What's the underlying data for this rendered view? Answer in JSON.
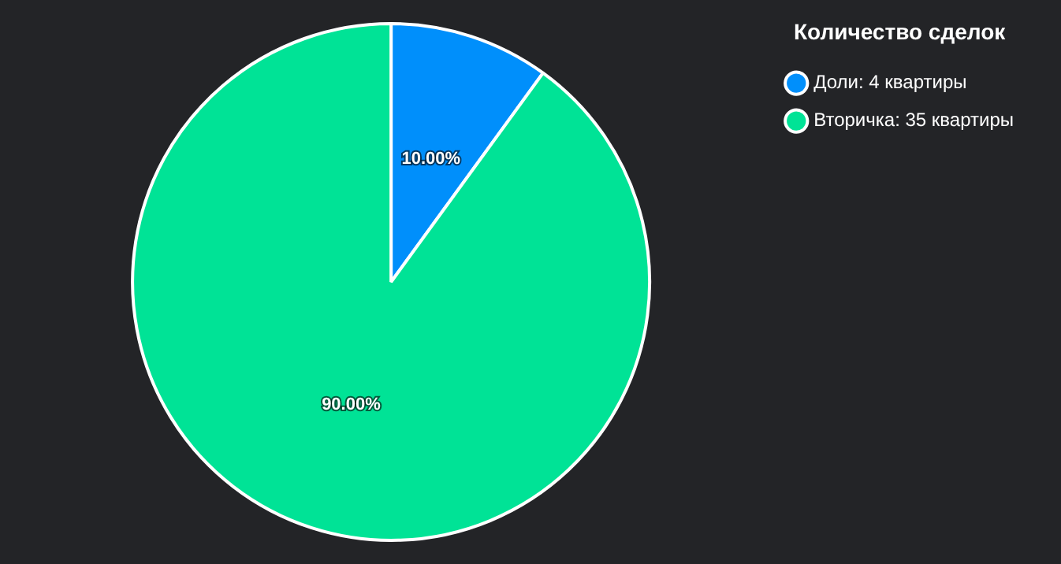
{
  "chart_data": {
    "type": "pie",
    "legend_title": "Количество сделок",
    "categories": [
      "Доли: 4 квартиры",
      "Вторичка: 35 квартиры"
    ],
    "values": [
      10,
      90
    ],
    "colors": [
      "#008ffb",
      "#00e396"
    ],
    "value_labels": [
      "10.00%",
      "90.00%"
    ],
    "legend": "top right"
  }
}
